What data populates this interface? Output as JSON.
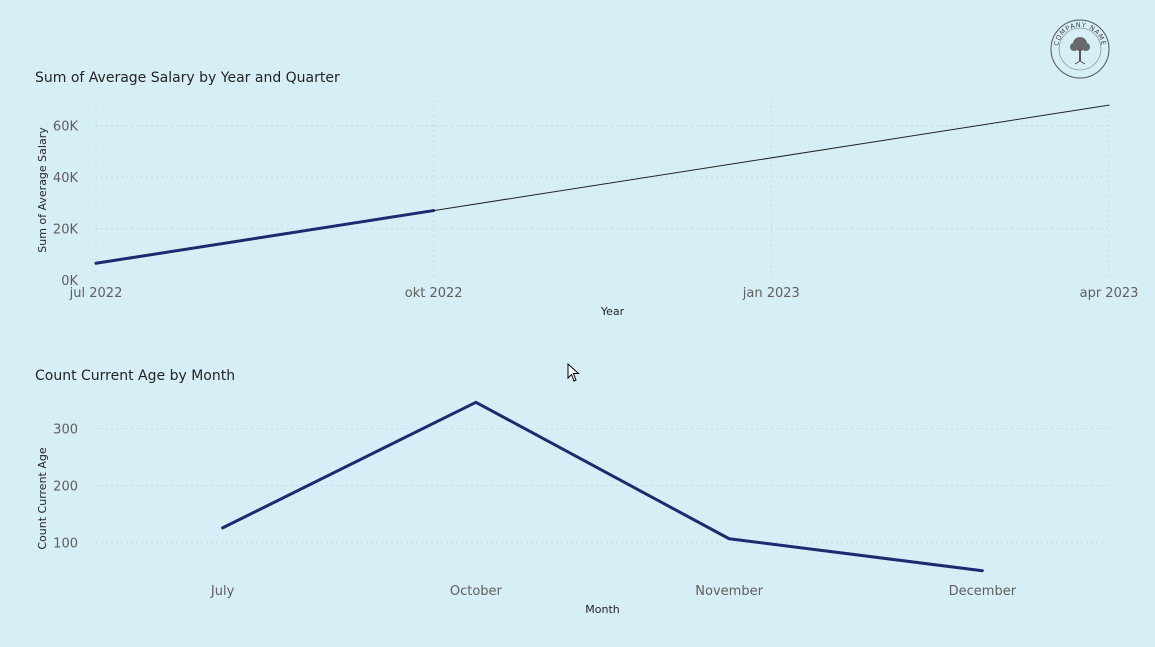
{
  "logo": {
    "text": "COMPANY NAME"
  },
  "chart_data": [
    {
      "type": "line",
      "title": "Sum of Average Salary by Year and Quarter",
      "xlabel": "Year",
      "ylabel": "Sum of Average Salary",
      "x_tick_labels": [
        "jul 2022",
        "okt 2022",
        "jan 2023",
        "apr 2023"
      ],
      "y_tick_labels": [
        "0K",
        "20K",
        "40K",
        "60K"
      ],
      "ylim": [
        0,
        70000
      ],
      "grid": true,
      "series": [
        {
          "x": [
            "jul 2022",
            "okt 2022"
          ],
          "values": [
            6500,
            27000
          ],
          "color": "#1f2a6e"
        },
        {
          "x": [
            "okt 2022",
            "apr 2023"
          ],
          "values": [
            27000,
            68000
          ],
          "color": "#252423"
        }
      ]
    },
    {
      "type": "line",
      "title": "Count Current Age by Month",
      "xlabel": "Month",
      "ylabel": "Count Current Age",
      "categories": [
        "July",
        "October",
        "November",
        "December"
      ],
      "y_tick_labels": [
        "100",
        "200",
        "300"
      ],
      "ylim": [
        40,
        350
      ],
      "grid": true,
      "series": [
        {
          "values": [
            126,
            346,
            107,
            51
          ],
          "color": "#1f2a6e"
        }
      ]
    }
  ]
}
